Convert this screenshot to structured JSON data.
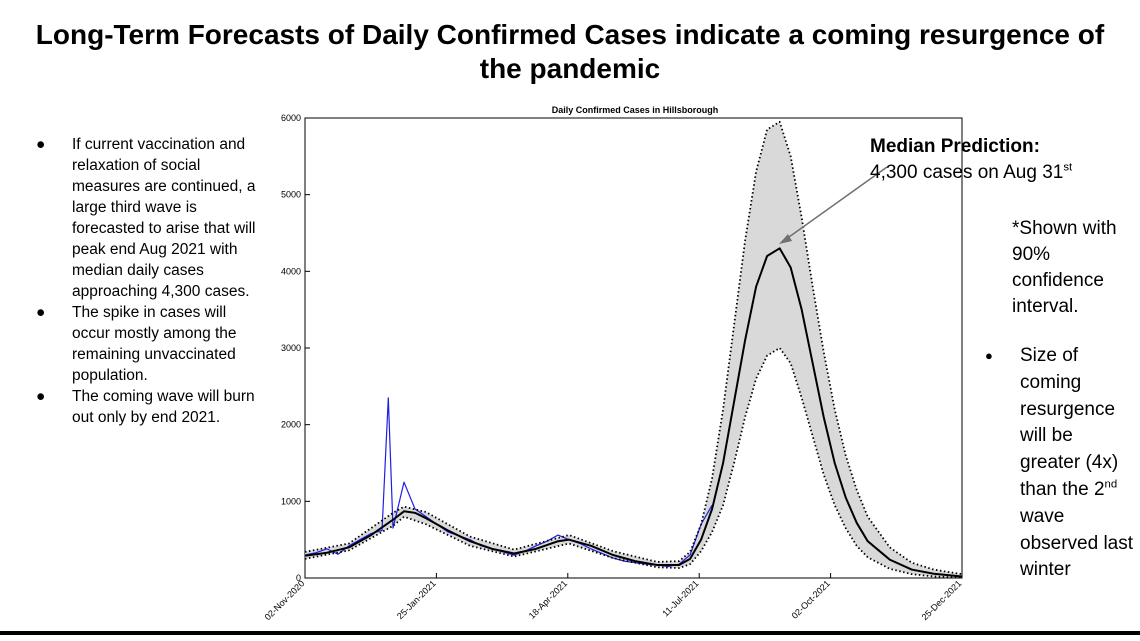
{
  "slide": {
    "title_line1": "Long-Term Forecasts of Daily Confirmed Cases indicate a coming resurgence of",
    "title_line2": "the pandemic"
  },
  "left_bullets": [
    "If current vaccination and relaxation of social measures are continued, a large third wave is forecasted to arise that will peak end Aug 2021 with median daily cases approaching 4,300 cases.",
    "The spike in cases will occur mostly among the remaining unvaccinated population.",
    "The coming wave will burn out only by end 2021."
  ],
  "bullet_glyph": "●",
  "callout": {
    "head": "Median Prediction:",
    "line_prefix": "4,300 cases on Aug 31",
    "line_sup": "st"
  },
  "note": "*Shown with 90% confidence interval.",
  "right_bullet": {
    "part1": "Size of coming resurgence will be greater (4x) than the 2",
    "sup": "nd",
    "part2": " wave observed last winter"
  },
  "chart_data": {
    "type": "line",
    "title": "Daily Confirmed Cases in Hillsborough",
    "x_ticks": [
      "02-Nov-2020",
      "25-Jan-2021",
      "18-Apr-2021",
      "11-Jul-2021",
      "02-Oct-2021",
      "25-Dec-2021"
    ],
    "y_ticks": [
      "0",
      "1000",
      "2000",
      "3000",
      "4000",
      "5000",
      "6000"
    ],
    "xlim": [
      "2020-11-02",
      "2021-12-25"
    ],
    "ylim": [
      0,
      6000
    ],
    "grid": false,
    "series": [
      {
        "role": "observed daily cases",
        "color": "#1f1fe6",
        "points": [
          [
            "2020-11-02",
            300
          ],
          [
            "2020-11-09",
            330
          ],
          [
            "2020-11-16",
            380
          ],
          [
            "2020-11-23",
            310
          ],
          [
            "2020-11-30",
            420
          ],
          [
            "2020-12-07",
            500
          ],
          [
            "2020-12-14",
            580
          ],
          [
            "2020-12-21",
            620
          ],
          [
            "2020-12-25",
            2350
          ],
          [
            "2020-12-28",
            650
          ],
          [
            "2021-01-04",
            1250
          ],
          [
            "2021-01-11",
            900
          ],
          [
            "2021-01-18",
            800
          ],
          [
            "2021-01-25",
            700
          ],
          [
            "2021-02-01",
            600
          ],
          [
            "2021-02-08",
            550
          ],
          [
            "2021-02-15",
            500
          ],
          [
            "2021-02-22",
            420
          ],
          [
            "2021-03-01",
            380
          ],
          [
            "2021-03-08",
            340
          ],
          [
            "2021-03-15",
            300
          ],
          [
            "2021-03-22",
            350
          ],
          [
            "2021-03-29",
            420
          ],
          [
            "2021-04-05",
            480
          ],
          [
            "2021-04-12",
            560
          ],
          [
            "2021-04-19",
            500
          ],
          [
            "2021-04-26",
            450
          ],
          [
            "2021-05-03",
            380
          ],
          [
            "2021-05-10",
            320
          ],
          [
            "2021-05-17",
            260
          ],
          [
            "2021-05-24",
            220
          ],
          [
            "2021-05-31",
            200
          ],
          [
            "2021-06-07",
            180
          ],
          [
            "2021-06-14",
            170
          ],
          [
            "2021-06-21",
            150
          ],
          [
            "2021-06-28",
            180
          ],
          [
            "2021-07-05",
            300
          ],
          [
            "2021-07-12",
            700
          ],
          [
            "2021-07-19",
            950
          ]
        ]
      },
      {
        "role": "median prediction",
        "color": "#000000",
        "points": [
          [
            "2020-11-02",
            290
          ],
          [
            "2020-11-16",
            330
          ],
          [
            "2020-11-30",
            400
          ],
          [
            "2020-12-14",
            560
          ],
          [
            "2020-12-28",
            760
          ],
          [
            "2021-01-04",
            870
          ],
          [
            "2021-01-11",
            850
          ],
          [
            "2021-01-18",
            780
          ],
          [
            "2021-02-01",
            620
          ],
          [
            "2021-02-15",
            480
          ],
          [
            "2021-03-01",
            380
          ],
          [
            "2021-03-15",
            320
          ],
          [
            "2021-03-29",
            380
          ],
          [
            "2021-04-12",
            480
          ],
          [
            "2021-04-19",
            500
          ],
          [
            "2021-05-03",
            420
          ],
          [
            "2021-05-17",
            300
          ],
          [
            "2021-05-31",
            220
          ],
          [
            "2021-06-14",
            170
          ],
          [
            "2021-06-28",
            170
          ],
          [
            "2021-07-05",
            250
          ],
          [
            "2021-07-12",
            500
          ],
          [
            "2021-07-19",
            900
          ],
          [
            "2021-07-26",
            1500
          ],
          [
            "2021-08-02",
            2300
          ],
          [
            "2021-08-09",
            3100
          ],
          [
            "2021-08-16",
            3800
          ],
          [
            "2021-08-23",
            4200
          ],
          [
            "2021-08-31",
            4300
          ],
          [
            "2021-09-07",
            4050
          ],
          [
            "2021-09-14",
            3500
          ],
          [
            "2021-09-21",
            2800
          ],
          [
            "2021-09-28",
            2100
          ],
          [
            "2021-10-05",
            1500
          ],
          [
            "2021-10-12",
            1050
          ],
          [
            "2021-10-19",
            720
          ],
          [
            "2021-10-26",
            480
          ],
          [
            "2021-11-09",
            240
          ],
          [
            "2021-11-23",
            110
          ],
          [
            "2021-12-07",
            55
          ],
          [
            "2021-12-25",
            20
          ]
        ]
      },
      {
        "role": "90% interval upper",
        "color": "#000000",
        "points": [
          [
            "2020-11-02",
            340
          ],
          [
            "2020-11-30",
            450
          ],
          [
            "2020-12-28",
            850
          ],
          [
            "2021-01-04",
            930
          ],
          [
            "2021-01-18",
            860
          ],
          [
            "2021-02-15",
            540
          ],
          [
            "2021-03-15",
            370
          ],
          [
            "2021-04-19",
            560
          ],
          [
            "2021-05-17",
            350
          ],
          [
            "2021-06-14",
            210
          ],
          [
            "2021-06-28",
            220
          ],
          [
            "2021-07-05",
            340
          ],
          [
            "2021-07-12",
            700
          ],
          [
            "2021-07-19",
            1300
          ],
          [
            "2021-07-26",
            2200
          ],
          [
            "2021-08-02",
            3300
          ],
          [
            "2021-08-09",
            4400
          ],
          [
            "2021-08-16",
            5300
          ],
          [
            "2021-08-23",
            5850
          ],
          [
            "2021-08-31",
            5950
          ],
          [
            "2021-09-07",
            5500
          ],
          [
            "2021-09-14",
            4700
          ],
          [
            "2021-09-21",
            3800
          ],
          [
            "2021-09-28",
            2950
          ],
          [
            "2021-10-05",
            2200
          ],
          [
            "2021-10-12",
            1600
          ],
          [
            "2021-10-19",
            1150
          ],
          [
            "2021-10-26",
            800
          ],
          [
            "2021-11-09",
            400
          ],
          [
            "2021-11-23",
            200
          ],
          [
            "2021-12-07",
            110
          ],
          [
            "2021-12-25",
            50
          ]
        ]
      },
      {
        "role": "90% interval lower",
        "color": "#000000",
        "points": [
          [
            "2020-11-02",
            250
          ],
          [
            "2020-11-30",
            360
          ],
          [
            "2020-12-28",
            680
          ],
          [
            "2021-01-04",
            800
          ],
          [
            "2021-01-18",
            700
          ],
          [
            "2021-02-15",
            420
          ],
          [
            "2021-03-15",
            280
          ],
          [
            "2021-04-19",
            450
          ],
          [
            "2021-05-17",
            260
          ],
          [
            "2021-06-14",
            140
          ],
          [
            "2021-06-28",
            130
          ],
          [
            "2021-07-05",
            180
          ],
          [
            "2021-07-12",
            350
          ],
          [
            "2021-07-19",
            600
          ],
          [
            "2021-07-26",
            950
          ],
          [
            "2021-08-02",
            1500
          ],
          [
            "2021-08-09",
            2100
          ],
          [
            "2021-08-16",
            2600
          ],
          [
            "2021-08-23",
            2900
          ],
          [
            "2021-08-31",
            3000
          ],
          [
            "2021-09-07",
            2800
          ],
          [
            "2021-09-14",
            2350
          ],
          [
            "2021-09-21",
            1850
          ],
          [
            "2021-09-28",
            1350
          ],
          [
            "2021-10-05",
            950
          ],
          [
            "2021-10-12",
            650
          ],
          [
            "2021-10-19",
            420
          ],
          [
            "2021-10-26",
            270
          ],
          [
            "2021-11-09",
            120
          ],
          [
            "2021-11-23",
            50
          ],
          [
            "2021-12-07",
            20
          ],
          [
            "2021-12-25",
            5
          ]
        ]
      }
    ],
    "band_color": "#d9d9d9"
  }
}
